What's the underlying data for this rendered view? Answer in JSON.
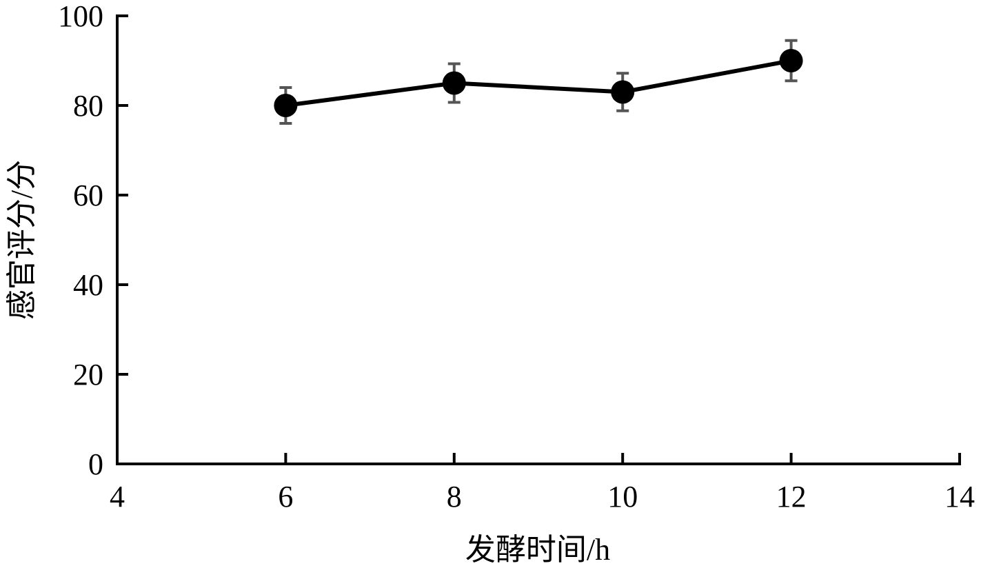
{
  "chart_data": {
    "type": "line",
    "xlabel": "发酵时间/h",
    "ylabel": "感官评分/分",
    "x": [
      6,
      8,
      10,
      12
    ],
    "values": [
      80,
      85,
      83,
      90
    ],
    "errors": [
      4,
      4.3,
      4.2,
      4.5
    ],
    "color": "#000000",
    "error_color": "#555555",
    "xlim": [
      4,
      14
    ],
    "xticks": [
      4,
      6,
      8,
      10,
      12,
      14
    ],
    "ylim": [
      0,
      100
    ],
    "yticks": [
      0,
      20,
      40,
      60,
      80,
      100
    ]
  }
}
